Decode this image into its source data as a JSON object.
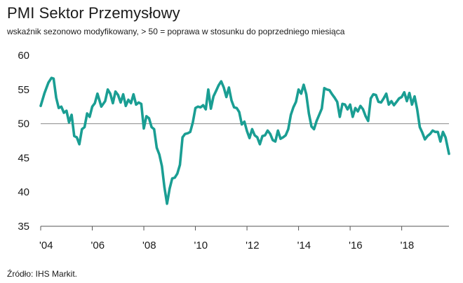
{
  "title": "PMI Sektor Przemysłowy",
  "subtitle": "wskaźnik sezonowo modyfikowany, > 50 = poprawa w stosunku do poprzedniego miesiąca",
  "source": "Źródło:  IHS Markit.",
  "colors": {
    "series": "#1a9e93",
    "axis": "#555555",
    "reference": "#8a8a8a"
  },
  "chart_data": {
    "type": "line",
    "title": "PMI Sektor Przemysłowy",
    "xlabel": "",
    "ylabel": "",
    "ylim": [
      35,
      60
    ],
    "xlim": [
      2004.0,
      2019.833
    ],
    "reference_line": 50,
    "grid": false,
    "yticks": [
      {
        "label": "60",
        "value": 60
      },
      {
        "label": "55",
        "value": 55
      },
      {
        "label": "50",
        "value": 50
      },
      {
        "label": "45",
        "value": 45
      },
      {
        "label": "40",
        "value": 40
      },
      {
        "label": "35",
        "value": 35
      }
    ],
    "xticks": [
      {
        "label": "'04",
        "value": 2004
      },
      {
        "label": "'06",
        "value": 2006
      },
      {
        "label": "'08",
        "value": 2008
      },
      {
        "label": "'10",
        "value": 2010
      },
      {
        "label": "'12",
        "value": 2012
      },
      {
        "label": "'14",
        "value": 2014
      },
      {
        "label": "'16",
        "value": 2016
      },
      {
        "label": "'18",
        "value": 2018
      }
    ],
    "series": [
      {
        "name": "PMI",
        "x": [
          2004.0,
          2004.15,
          2004.3,
          2004.42,
          2004.5,
          2004.6,
          2004.7,
          2004.8,
          2004.9,
          2005.0,
          2005.1,
          2005.2,
          2005.3,
          2005.4,
          2005.5,
          2005.6,
          2005.7,
          2005.8,
          2005.9,
          2006.0,
          2006.1,
          2006.2,
          2006.35,
          2006.5,
          2006.6,
          2006.7,
          2006.8,
          2006.9,
          2007.0,
          2007.1,
          2007.2,
          2007.3,
          2007.4,
          2007.5,
          2007.6,
          2007.7,
          2007.8,
          2007.9,
          2008.0,
          2008.1,
          2008.2,
          2008.3,
          2008.4,
          2008.5,
          2008.6,
          2008.7,
          2008.8,
          2008.9,
          2009.0,
          2009.1,
          2009.2,
          2009.3,
          2009.4,
          2009.5,
          2009.6,
          2009.7,
          2009.8,
          2009.9,
          2010.0,
          2010.1,
          2010.2,
          2010.3,
          2010.4,
          2010.5,
          2010.6,
          2010.7,
          2010.8,
          2010.9,
          2011.0,
          2011.1,
          2011.2,
          2011.3,
          2011.4,
          2011.5,
          2011.6,
          2011.7,
          2011.8,
          2011.9,
          2012.0,
          2012.1,
          2012.2,
          2012.3,
          2012.4,
          2012.5,
          2012.6,
          2012.7,
          2012.8,
          2012.9,
          2013.0,
          2013.1,
          2013.2,
          2013.3,
          2013.4,
          2013.5,
          2013.6,
          2013.7,
          2013.8,
          2013.9,
          2014.0,
          2014.1,
          2014.2,
          2014.3,
          2014.4,
          2014.5,
          2014.6,
          2014.7,
          2014.8,
          2014.9,
          2015.0,
          2015.1,
          2015.2,
          2015.3,
          2015.4,
          2015.5,
          2015.6,
          2015.7,
          2015.8,
          2015.9,
          2016.0,
          2016.1,
          2016.2,
          2016.3,
          2016.4,
          2016.5,
          2016.6,
          2016.7,
          2016.8,
          2016.9,
          2017.0,
          2017.1,
          2017.2,
          2017.3,
          2017.4,
          2017.5,
          2017.6,
          2017.7,
          2017.8,
          2017.9,
          2018.0,
          2018.1,
          2018.2,
          2018.3,
          2018.4,
          2018.5,
          2018.6,
          2018.7,
          2018.8,
          2018.9,
          2019.0,
          2019.1,
          2019.2,
          2019.3,
          2019.4,
          2019.5,
          2019.6,
          2019.7,
          2019.833
        ],
        "y": [
          52.6,
          54.5,
          56.0,
          56.7,
          56.6,
          53.8,
          52.3,
          52.5,
          51.6,
          51.9,
          50.2,
          51.3,
          48.2,
          48.0,
          47.0,
          49.2,
          49.5,
          51.5,
          51.0,
          52.5,
          53.0,
          54.4,
          52.5,
          53.3,
          55.0,
          54.4,
          53.0,
          54.7,
          54.2,
          53.1,
          54.3,
          52.6,
          53.5,
          53.0,
          54.3,
          52.8,
          53.1,
          52.9,
          49.3,
          51.1,
          50.8,
          49.5,
          49.2,
          46.5,
          45.5,
          43.8,
          40.7,
          38.3,
          40.5,
          42.0,
          42.1,
          42.7,
          44.0,
          48.0,
          48.5,
          48.6,
          48.8,
          50.2,
          52.3,
          52.5,
          52.4,
          52.7,
          52.1,
          55.0,
          52.2,
          54.0,
          54.8,
          55.6,
          56.2,
          55.3,
          53.9,
          55.3,
          53.4,
          52.4,
          52.3,
          51.7,
          49.9,
          50.3,
          48.9,
          47.9,
          49.2,
          48.3,
          48.0,
          47.0,
          48.2,
          48.3,
          49.0,
          48.5,
          47.6,
          47.4,
          49.0,
          47.8,
          48.0,
          48.3,
          49.2,
          51.3,
          52.4,
          53.2,
          55.0,
          54.4,
          55.7,
          54.3,
          51.5,
          49.6,
          49.2,
          50.4,
          51.3,
          52.2,
          55.2,
          55.0,
          54.9,
          54.3,
          53.8,
          53.2,
          51.0,
          52.9,
          52.8,
          52.1,
          52.8,
          51.0,
          52.3,
          51.8,
          52.6,
          52.1,
          51.1,
          50.4,
          53.7,
          54.3,
          54.2,
          53.2,
          53.1,
          53.7,
          54.4,
          52.8,
          53.3,
          52.7,
          53.2,
          53.7,
          53.9,
          54.6,
          53.3,
          54.5,
          52.8,
          54.0,
          52.1,
          49.5,
          48.7,
          47.7,
          48.2,
          48.5,
          49.0,
          48.8,
          48.8,
          47.4,
          48.8,
          48.0,
          45.6
        ]
      }
    ]
  }
}
